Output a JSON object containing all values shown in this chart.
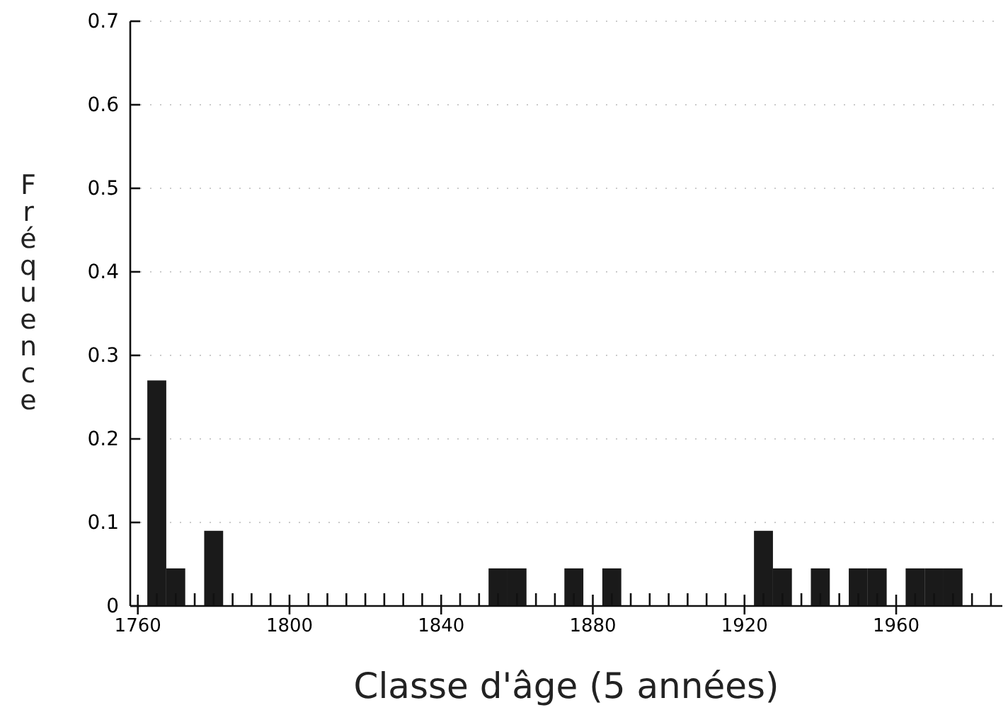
{
  "chart_data": {
    "type": "histogram",
    "xlabel": "Classe d'âge (5 années)",
    "ylabel": "Fréquence",
    "bins": [
      1762.5,
      1767.5,
      1772.5,
      1777.5,
      1782.5,
      1787.5,
      1792.5,
      1797.5,
      1802.5,
      1807.5,
      1812.5,
      1817.5,
      1822.5,
      1827.5,
      1832.5,
      1837.5,
      1842.5,
      1847.5,
      1852.5,
      1857.5,
      1862.5,
      1867.5,
      1872.5,
      1877.5,
      1882.5,
      1887.5,
      1892.5,
      1897.5,
      1902.5,
      1907.5,
      1912.5,
      1917.5,
      1922.5,
      1927.5,
      1932.5,
      1937.5,
      1942.5,
      1947.5,
      1952.5,
      1957.5,
      1962.5,
      1967.5,
      1972.5,
      1977.5
    ],
    "values": [
      0.27,
      0.045,
      0,
      0.09,
      0,
      0,
      0,
      0,
      0,
      0,
      0,
      0,
      0,
      0,
      0,
      0,
      0,
      0,
      0.045,
      0.045,
      0,
      0,
      0.045,
      0,
      0.045,
      0,
      0,
      0,
      0,
      0,
      0,
      0,
      0.09,
      0.045,
      0,
      0.045,
      0,
      0.045,
      0.045,
      0,
      0.045,
      0.045,
      0.045
    ],
    "color": "#1a1a1a",
    "xlim": [
      1758,
      1988
    ],
    "xticks": [
      1760,
      {
        "value": 1765,
        "label": null
      },
      {
        "value": 1770,
        "label": null
      },
      {
        "value": 1775,
        "label": null
      },
      {
        "value": 1780,
        "label": null
      },
      {
        "value": 1785,
        "label": null
      },
      {
        "value": 1790,
        "label": null
      },
      {
        "value": 1795,
        "label": null
      },
      1800,
      {
        "value": 1805,
        "label": null
      },
      {
        "value": 1810,
        "label": null
      },
      {
        "value": 1815,
        "label": null
      },
      {
        "value": 1820,
        "label": null
      },
      {
        "value": 1825,
        "label": null
      },
      {
        "value": 1830,
        "label": null
      },
      {
        "value": 1835,
        "label": null
      },
      1840,
      {
        "value": 1845,
        "label": null
      },
      {
        "value": 1850,
        "label": null
      },
      {
        "value": 1855,
        "label": null
      },
      {
        "value": 1860,
        "label": null
      },
      {
        "value": 1865,
        "label": null
      },
      {
        "value": 1870,
        "label": null
      },
      {
        "value": 1875,
        "label": null
      },
      1880,
      {
        "value": 1885,
        "label": null
      },
      {
        "value": 1890,
        "label": null
      },
      {
        "value": 1895,
        "label": null
      },
      {
        "value": 1900,
        "label": null
      },
      {
        "value": 1905,
        "label": null
      },
      {
        "value": 1910,
        "label": null
      },
      {
        "value": 1915,
        "label": null
      },
      1920,
      {
        "value": 1925,
        "label": null
      },
      {
        "value": 1930,
        "label": null
      },
      {
        "value": 1935,
        "label": null
      },
      {
        "value": 1940,
        "label": null
      },
      {
        "value": 1945,
        "label": null
      },
      {
        "value": 1950,
        "label": null
      },
      {
        "value": 1955,
        "label": null
      },
      1960,
      {
        "value": 1965,
        "label": null
      },
      {
        "value": 1970,
        "label": null
      },
      {
        "value": 1975,
        "label": null
      },
      {
        "value": 1980,
        "label": null
      },
      {
        "value": 1985,
        "label": null
      }
    ],
    "ylim": [
      0,
      0.7
    ],
    "yticks": [
      0,
      0.1,
      0.2,
      0.3,
      0.4,
      0.5,
      0.6,
      0.7
    ],
    "grid": "y"
  }
}
